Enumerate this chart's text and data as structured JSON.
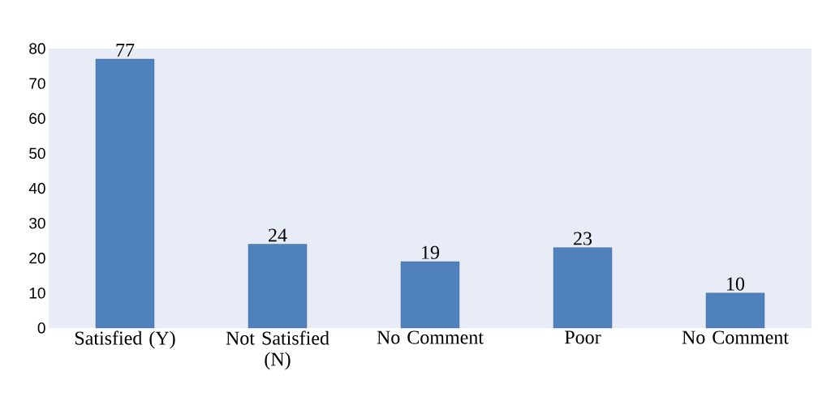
{
  "chart_data": {
    "type": "bar",
    "categories": [
      "Satisfied (Y)",
      "Not Satisfied (N)",
      "No Comment",
      "Poor",
      "No Comment"
    ],
    "values": [
      77,
      24,
      19,
      23,
      10
    ],
    "color": "#4f81bd",
    "ylim": [
      0,
      80
    ],
    "yticks": [
      0,
      10,
      20,
      30,
      40,
      50,
      60,
      70,
      80
    ],
    "data_labels": true
  }
}
